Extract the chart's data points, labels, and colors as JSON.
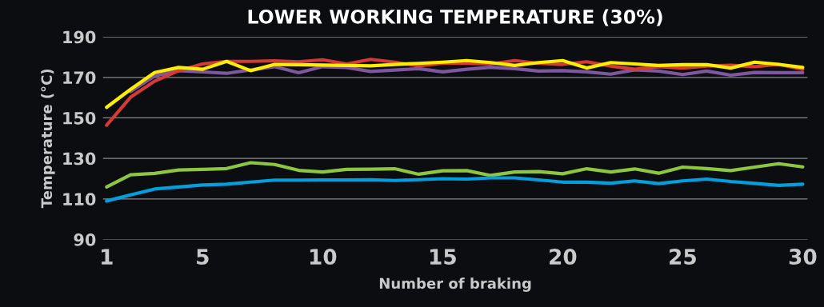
{
  "chart_data": {
    "type": "line",
    "title": "LOWER WORKING TEMPERATURE (30%)",
    "xlabel": "Number of braking",
    "ylabel": "Temperature (°C)",
    "x": [
      1,
      2,
      3,
      4,
      5,
      6,
      7,
      8,
      9,
      10,
      11,
      12,
      13,
      14,
      15,
      16,
      17,
      18,
      19,
      20,
      21,
      22,
      23,
      24,
      25,
      26,
      27,
      28,
      29,
      30
    ],
    "xlim": [
      0.85,
      30.2
    ],
    "xticks": [
      1,
      5,
      10,
      15,
      20,
      25,
      30
    ],
    "ylim": [
      90,
      190
    ],
    "yticks": [
      90,
      110,
      130,
      150,
      170,
      190
    ],
    "grid": "y",
    "marker": "none",
    "line_style": "solid",
    "series": [
      {
        "color": "#8dc63f",
        "values": [
          115.9,
          121.9,
          122.6,
          124.3,
          124.6,
          125.0,
          127.9,
          127.0,
          124.1,
          123.3,
          124.6,
          124.7,
          124.9,
          122.2,
          123.9,
          124.0,
          121.6,
          123.3,
          123.5,
          122.4,
          124.9,
          123.3,
          124.8,
          122.7,
          125.7,
          125.0,
          124.0,
          125.7,
          127.4,
          125.8
        ]
      },
      {
        "color": "#00a0df",
        "values": [
          109.0,
          112.0,
          114.9,
          115.9,
          116.9,
          117.3,
          118.3,
          119.3,
          119.3,
          119.4,
          119.4,
          119.5,
          119.1,
          119.5,
          120.0,
          119.8,
          120.4,
          120.4,
          119.4,
          118.3,
          118.3,
          117.8,
          118.9,
          117.6,
          118.9,
          119.8,
          118.6,
          117.7,
          116.7,
          117.3
        ]
      },
      {
        "color": "#7e57a0",
        "values": [
          null,
          163.0,
          170.7,
          173.3,
          172.7,
          172.0,
          173.7,
          175.3,
          172.3,
          175.3,
          174.9,
          172.9,
          173.6,
          174.3,
          172.7,
          174.0,
          175.0,
          174.3,
          173.1,
          173.3,
          172.7,
          171.6,
          173.7,
          173.1,
          171.4,
          173.1,
          171.1,
          172.4,
          172.3,
          172.3
        ]
      },
      {
        "color": "#d63a35",
        "values": [
          146.4,
          160.2,
          168.1,
          173.3,
          176.6,
          177.9,
          177.9,
          178.2,
          177.7,
          178.7,
          176.6,
          178.9,
          177.5,
          175.7,
          176.9,
          176.9,
          176.6,
          178.3,
          176.9,
          176.4,
          177.7,
          175.6,
          174.0,
          175.3,
          174.6,
          175.6,
          176.0,
          175.3,
          176.4,
          174.0
        ]
      },
      {
        "color": "#ffed00",
        "values": [
          155.2,
          164.1,
          172.4,
          174.9,
          174.0,
          177.9,
          173.3,
          176.4,
          176.3,
          176.1,
          175.9,
          175.7,
          176.4,
          176.9,
          177.5,
          178.3,
          177.3,
          175.9,
          177.3,
          178.3,
          174.6,
          177.3,
          176.6,
          175.9,
          176.3,
          176.3,
          174.6,
          177.5,
          176.4,
          174.9
        ]
      }
    ]
  }
}
